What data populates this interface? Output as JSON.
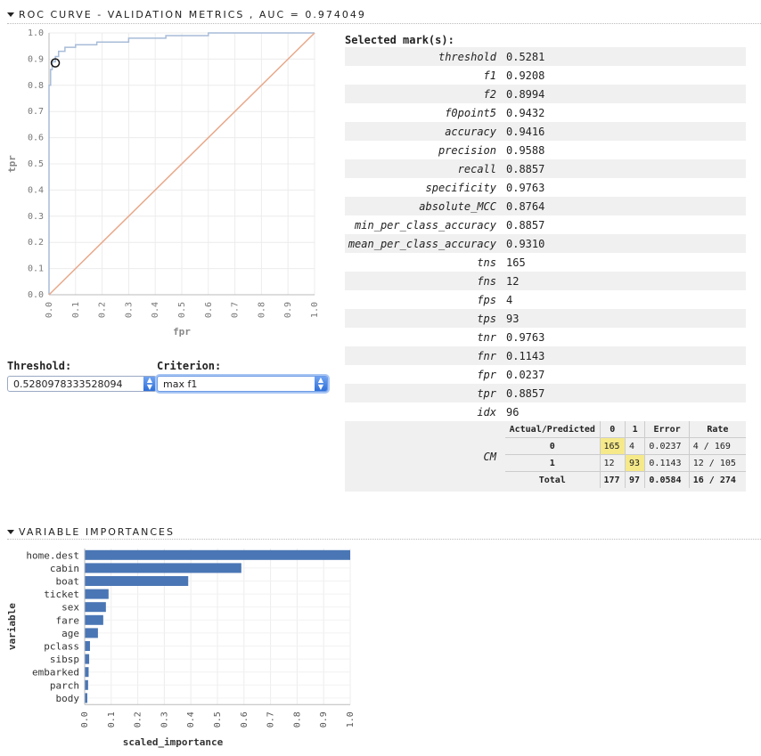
{
  "roc_section": {
    "title": "ROC CURVE - VALIDATION METRICS , AUC = 0.974049"
  },
  "varimp_section": {
    "title": "VARIABLE IMPORTANCES"
  },
  "controls": {
    "threshold_label": "Threshold:",
    "threshold_value": "0.5280978333528094",
    "criterion_label": "Criterion:",
    "criterion_value": "max f1"
  },
  "metrics": {
    "title": "Selected mark(s):",
    "rows": [
      {
        "k": "threshold",
        "v": "0.5281"
      },
      {
        "k": "f1",
        "v": "0.9208"
      },
      {
        "k": "f2",
        "v": "0.8994"
      },
      {
        "k": "f0point5",
        "v": "0.9432"
      },
      {
        "k": "accuracy",
        "v": "0.9416"
      },
      {
        "k": "precision",
        "v": "0.9588"
      },
      {
        "k": "recall",
        "v": "0.8857"
      },
      {
        "k": "specificity",
        "v": "0.9763"
      },
      {
        "k": "absolute_MCC",
        "v": "0.8764"
      },
      {
        "k": "min_per_class_accuracy",
        "v": "0.8857"
      },
      {
        "k": "mean_per_class_accuracy",
        "v": "0.9310"
      },
      {
        "k": "tns",
        "v": "165"
      },
      {
        "k": "fns",
        "v": "12"
      },
      {
        "k": "fps",
        "v": "4"
      },
      {
        "k": "tps",
        "v": "93"
      },
      {
        "k": "tnr",
        "v": "0.9763"
      },
      {
        "k": "fnr",
        "v": "0.1143"
      },
      {
        "k": "fpr",
        "v": "0.0237"
      },
      {
        "k": "tpr",
        "v": "0.8857"
      },
      {
        "k": "idx",
        "v": "96"
      }
    ],
    "cm": {
      "label": "CM",
      "headers": [
        "Actual/Predicted",
        "0",
        "1",
        "Error",
        "Rate"
      ],
      "rows": [
        [
          "0",
          "165",
          "4",
          "0.0237",
          "4 / 169"
        ],
        [
          "1",
          "12",
          "93",
          "0.1143",
          "12 / 105"
        ],
        [
          "Total",
          "177",
          "97",
          "0.0584",
          "16 / 274"
        ]
      ]
    }
  },
  "chart_data": [
    {
      "type": "line",
      "xlabel": "fpr",
      "ylabel": "tpr",
      "xlim": [
        0,
        1
      ],
      "ylim": [
        0,
        1
      ],
      "ticks": [
        "0.0",
        "0.1",
        "0.2",
        "0.3",
        "0.4",
        "0.5",
        "0.6",
        "0.7",
        "0.8",
        "0.9",
        "1.0"
      ],
      "grid": true,
      "series": [
        {
          "color": "#a8bcd8",
          "x": [
            0,
            0,
            0.006,
            0.006,
            0.012,
            0.012,
            0.024,
            0.024,
            0.036,
            0.036,
            0.06,
            0.06,
            0.1,
            0.1,
            0.18,
            0.18,
            0.3,
            0.3,
            0.44,
            0.44,
            0.6,
            0.6,
            1.0
          ],
          "y": [
            0,
            0.8,
            0.8,
            0.86,
            0.86,
            0.89,
            0.89,
            0.91,
            0.91,
            0.93,
            0.93,
            0.945,
            0.945,
            0.955,
            0.955,
            0.965,
            0.965,
            0.98,
            0.98,
            0.99,
            0.99,
            1.0,
            1.0
          ]
        },
        {
          "color": "#e8a88a",
          "x": [
            0,
            1
          ],
          "y": [
            0,
            1
          ]
        }
      ],
      "marker": {
        "x": 0.0237,
        "y": 0.8857
      }
    },
    {
      "type": "bar",
      "orientation": "horizontal",
      "xlabel": "scaled_importance",
      "ylabel": "variable",
      "xlim": [
        0,
        1
      ],
      "ticks": [
        "0.0",
        "0.1",
        "0.2",
        "0.3",
        "0.4",
        "0.5",
        "0.6",
        "0.7",
        "0.8",
        "0.9",
        "1.0"
      ],
      "grid": true,
      "color": "#4a76b5",
      "categories": [
        "home.dest",
        "cabin",
        "boat",
        "ticket",
        "sex",
        "fare",
        "age",
        "pclass",
        "sibsp",
        "embarked",
        "parch",
        "body"
      ],
      "values": [
        1.0,
        0.59,
        0.39,
        0.09,
        0.08,
        0.07,
        0.05,
        0.02,
        0.017,
        0.015,
        0.013,
        0.01
      ]
    }
  ]
}
